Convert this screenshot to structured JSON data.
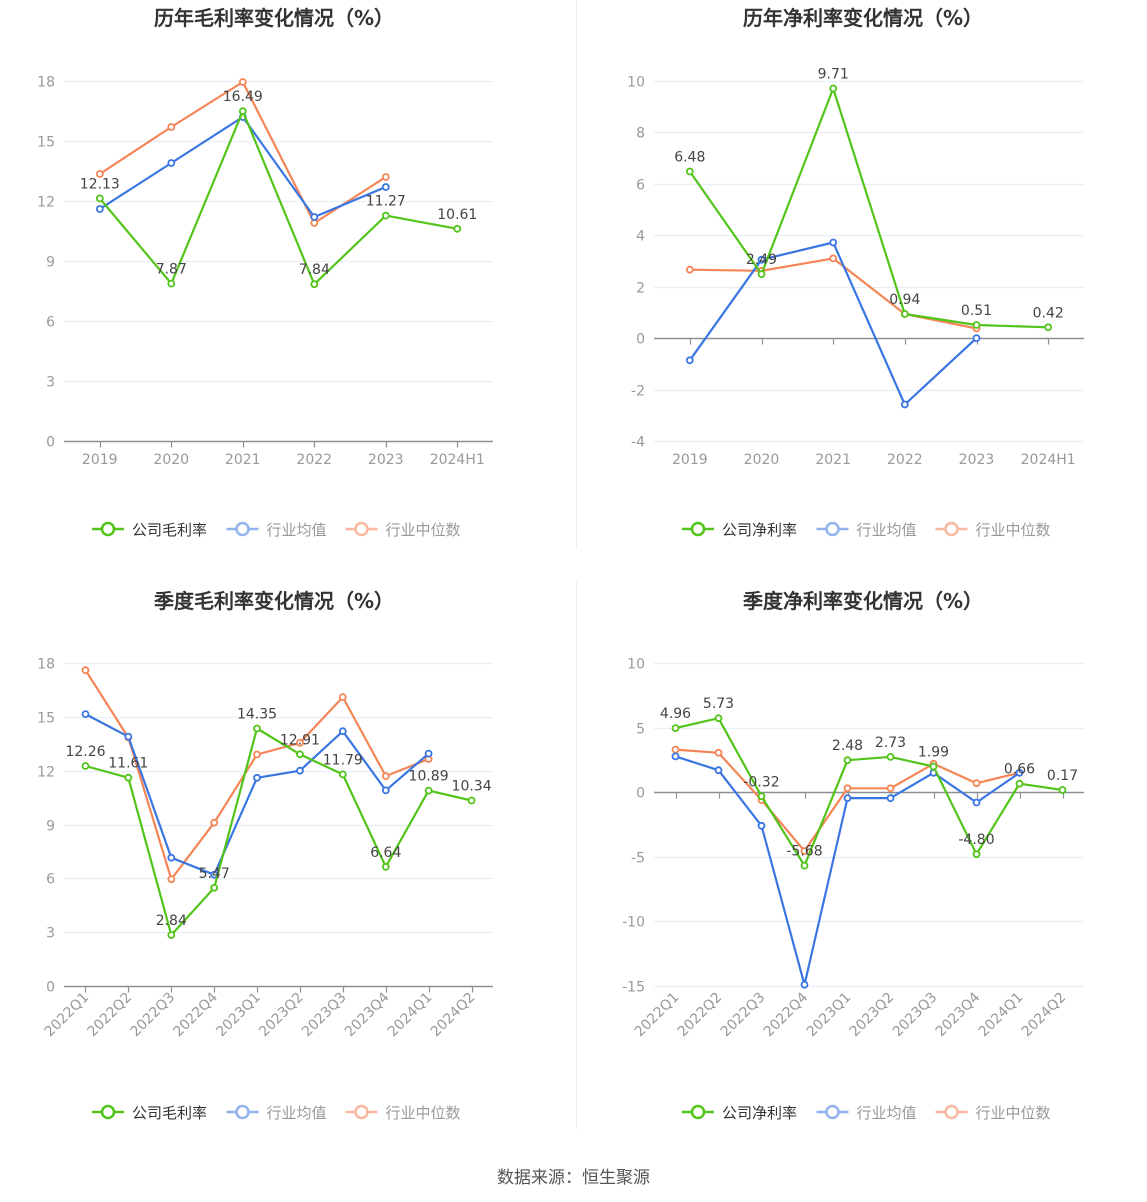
{
  "colors": {
    "company": "#52c41a",
    "industry_avg": "#3a76e2",
    "industry_median": "#f58556",
    "grid": "#e8edf7",
    "axis": "#8c8f96"
  },
  "footer": {
    "source": "数据来源：恒生聚源"
  },
  "chart_data": [
    {
      "id": "annual-gross",
      "type": "line",
      "title": "历年毛利率变化情况（%）",
      "categories": [
        "2019",
        "2020",
        "2021",
        "2022",
        "2023",
        "2024H1"
      ],
      "ylim": [
        0,
        18
      ],
      "yticks": [
        0,
        3,
        6,
        9,
        12,
        15,
        18
      ],
      "ytick_labels": [
        "0",
        "3",
        "6",
        "9",
        "12",
        "15",
        "18"
      ],
      "grid": true,
      "legend_position": "bottom",
      "series": [
        {
          "name": "公司毛利率",
          "key": "company",
          "values": [
            12.13,
            7.87,
            16.49,
            7.84,
            11.27,
            10.61
          ],
          "labels": [
            "12.13",
            "7.87",
            "16.49",
            "7.84",
            "11.27",
            "10.61"
          ]
        },
        {
          "name": "行业均值",
          "key": "industry_avg",
          "values": [
            11.6,
            13.9,
            16.2,
            11.2,
            12.7,
            null
          ]
        },
        {
          "name": "行业中位数",
          "key": "industry_median",
          "values": [
            13.35,
            15.7,
            17.95,
            10.9,
            13.2,
            null
          ]
        }
      ]
    },
    {
      "id": "annual-net",
      "type": "line",
      "title": "历年净利率变化情况（%）",
      "categories": [
        "2019",
        "2020",
        "2021",
        "2022",
        "2023",
        "2024H1"
      ],
      "ylim": [
        -4,
        10
      ],
      "yticks": [
        -4,
        -2,
        0,
        2,
        4,
        6,
        8,
        10
      ],
      "ytick_labels": [
        "-4",
        "-2",
        "0",
        "2",
        "4",
        "6",
        "8",
        "10"
      ],
      "grid": true,
      "legend_position": "bottom",
      "series": [
        {
          "name": "公司净利率",
          "key": "company",
          "values": [
            6.48,
            2.49,
            9.71,
            0.94,
            0.51,
            0.42
          ],
          "labels": [
            "6.48",
            "2.49",
            "9.71",
            "0.94",
            "0.51",
            "0.42"
          ]
        },
        {
          "name": "行业均值",
          "key": "industry_avg",
          "values": [
            -0.86,
            3.05,
            3.72,
            -2.58,
            0.0,
            null
          ]
        },
        {
          "name": "行业中位数",
          "key": "industry_median",
          "values": [
            2.66,
            2.62,
            3.1,
            0.94,
            0.38,
            null
          ]
        }
      ]
    },
    {
      "id": "quarterly-gross",
      "type": "line",
      "title": "季度毛利率变化情况（%）",
      "categories": [
        "2022Q1",
        "2022Q2",
        "2022Q3",
        "2022Q4",
        "2023Q1",
        "2023Q2",
        "2023Q3",
        "2023Q4",
        "2024Q1",
        "2024Q2"
      ],
      "ylim": [
        0,
        18
      ],
      "yticks": [
        0,
        3,
        6,
        9,
        12,
        15,
        18
      ],
      "ytick_labels": [
        "0",
        "3",
        "6",
        "9",
        "12",
        "15",
        "18"
      ],
      "grid": true,
      "legend_position": "bottom",
      "series": [
        {
          "name": "公司毛利率",
          "key": "company",
          "values": [
            12.26,
            11.61,
            2.84,
            5.47,
            14.35,
            12.91,
            11.79,
            6.64,
            10.89,
            10.34
          ],
          "labels": [
            "12.26",
            "11.61",
            "2.84",
            "5.47",
            "14.35",
            "12.91",
            "11.79",
            "6.64",
            "10.89",
            "10.34"
          ]
        },
        {
          "name": "行业均值",
          "key": "industry_avg",
          "values": [
            15.15,
            13.9,
            7.15,
            6.2,
            11.6,
            12.0,
            14.2,
            10.9,
            12.95,
            null
          ]
        },
        {
          "name": "行业中位数",
          "key": "industry_median",
          "values": [
            17.6,
            13.85,
            5.95,
            9.1,
            12.9,
            13.55,
            16.1,
            11.7,
            12.65,
            null
          ]
        }
      ]
    },
    {
      "id": "quarterly-net",
      "type": "line",
      "title": "季度净利率变化情况（%）",
      "categories": [
        "2022Q1",
        "2022Q2",
        "2022Q3",
        "2022Q4",
        "2023Q1",
        "2023Q2",
        "2023Q3",
        "2023Q4",
        "2024Q1",
        "2024Q2"
      ],
      "ylim": [
        -15,
        10
      ],
      "yticks": [
        -15,
        -10,
        -5,
        0,
        5,
        10
      ],
      "ytick_labels": [
        "-15",
        "-10",
        "-5",
        "0",
        "5",
        "10"
      ],
      "grid": true,
      "legend_position": "bottom",
      "series": [
        {
          "name": "公司净利率",
          "key": "company",
          "values": [
            4.96,
            5.73,
            -0.32,
            -5.68,
            2.48,
            2.73,
            1.99,
            -4.8,
            0.66,
            0.17
          ],
          "labels": [
            "4.96",
            "5.73",
            "-0.32",
            "-5.68",
            "2.48",
            "2.73",
            "1.99",
            "-4.80",
            "0.66",
            "0.17"
          ]
        },
        {
          "name": "行业均值",
          "key": "industry_avg",
          "values": [
            2.77,
            1.7,
            -2.6,
            -14.9,
            -0.46,
            -0.46,
            1.5,
            -0.8,
            1.5,
            null
          ]
        },
        {
          "name": "行业中位数",
          "key": "industry_median",
          "values": [
            3.3,
            3.05,
            -0.6,
            -4.55,
            0.3,
            0.3,
            2.2,
            0.7,
            1.5,
            null
          ]
        }
      ]
    }
  ]
}
